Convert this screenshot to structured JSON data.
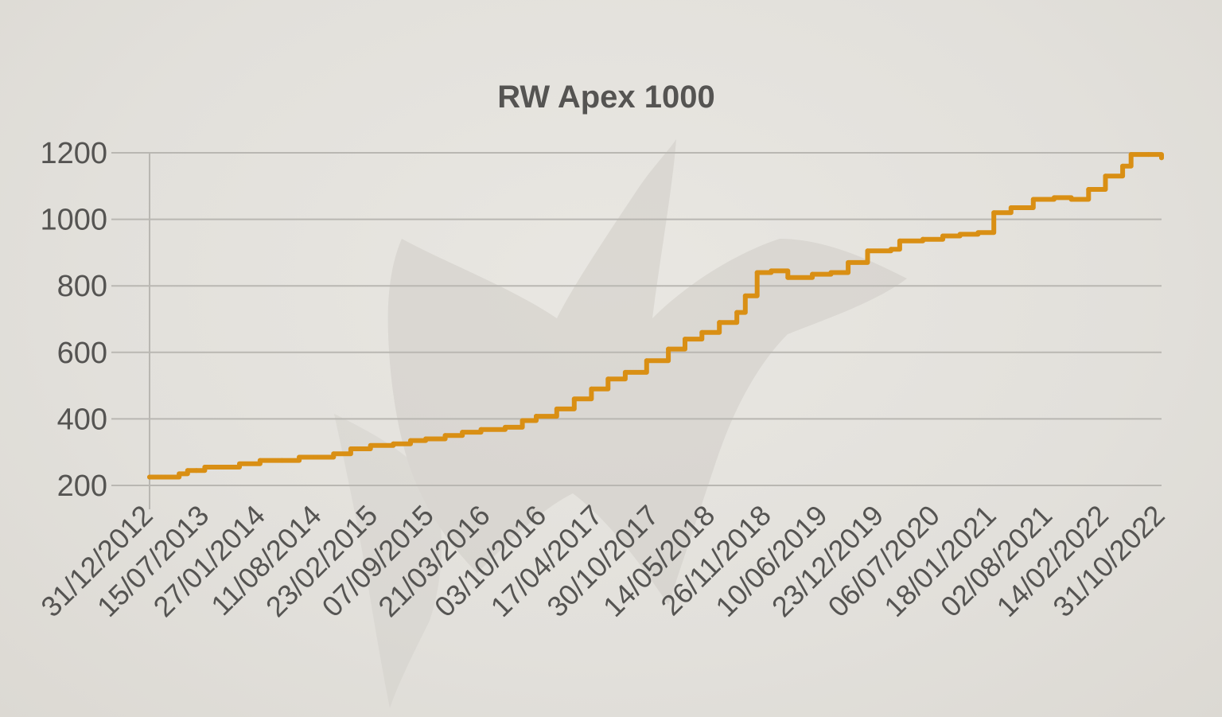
{
  "chart_data": {
    "type": "line",
    "title": "RW Apex 1000",
    "xlabel": "",
    "ylabel": "",
    "ylim": [
      200,
      1200
    ],
    "yticks": [
      200,
      400,
      600,
      800,
      1000,
      1200
    ],
    "grid": true,
    "legend": "none",
    "colors": {
      "line": "#d98f14",
      "text": "#555452",
      "grid": "#b9b7b2"
    },
    "x_tick_labels": [
      "31/12/2012",
      "15/07/2013",
      "27/01/2014",
      "11/08/2014",
      "23/02/2015",
      "07/09/2015",
      "21/03/2016",
      "03/10/2016",
      "17/04/2017",
      "30/10/2017",
      "14/05/2018",
      "26/11/2018",
      "10/06/2019",
      "23/12/2019",
      "06/07/2020",
      "18/01/2021",
      "02/08/2021",
      "14/02/2022",
      "31/10/2022"
    ],
    "series": [
      {
        "points": [
          [
            "31/12/2012",
            225
          ],
          [
            "15/02/2013",
            225
          ],
          [
            "15/04/2013",
            235
          ],
          [
            "15/05/2013",
            245
          ],
          [
            "15/06/2013",
            245
          ],
          [
            "15/07/2013",
            255
          ],
          [
            "15/09/2013",
            255
          ],
          [
            "15/11/2013",
            265
          ],
          [
            "27/01/2014",
            275
          ],
          [
            "15/04/2014",
            275
          ],
          [
            "15/06/2014",
            285
          ],
          [
            "11/08/2014",
            285
          ],
          [
            "15/10/2014",
            295
          ],
          [
            "15/12/2014",
            310
          ],
          [
            "23/02/2015",
            320
          ],
          [
            "15/05/2015",
            325
          ],
          [
            "15/07/2015",
            335
          ],
          [
            "07/09/2015",
            340
          ],
          [
            "15/11/2015",
            350
          ],
          [
            "15/01/2016",
            360
          ],
          [
            "21/03/2016",
            368
          ],
          [
            "15/06/2016",
            375
          ],
          [
            "15/08/2016",
            395
          ],
          [
            "03/10/2016",
            408
          ],
          [
            "15/12/2016",
            430
          ],
          [
            "15/02/2017",
            460
          ],
          [
            "17/04/2017",
            490
          ],
          [
            "15/06/2017",
            520
          ],
          [
            "15/08/2017",
            540
          ],
          [
            "30/10/2017",
            575
          ],
          [
            "15/01/2018",
            610
          ],
          [
            "15/03/2018",
            640
          ],
          [
            "14/05/2018",
            660
          ],
          [
            "15/07/2018",
            690
          ],
          [
            "15/09/2018",
            720
          ],
          [
            "15/10/2018",
            770
          ],
          [
            "26/11/2018",
            840
          ],
          [
            "15/01/2019",
            845
          ],
          [
            "15/03/2019",
            825
          ],
          [
            "10/06/2019",
            835
          ],
          [
            "15/08/2019",
            840
          ],
          [
            "15/10/2019",
            870
          ],
          [
            "23/12/2019",
            905
          ],
          [
            "15/03/2020",
            910
          ],
          [
            "15/04/2020",
            935
          ],
          [
            "06/07/2020",
            940
          ],
          [
            "15/09/2020",
            950
          ],
          [
            "15/11/2020",
            955
          ],
          [
            "18/01/2021",
            960
          ],
          [
            "15/03/2021",
            1020
          ],
          [
            "15/05/2021",
            1035
          ],
          [
            "02/08/2021",
            1060
          ],
          [
            "15/10/2021",
            1065
          ],
          [
            "15/12/2021",
            1060
          ],
          [
            "14/02/2022",
            1090
          ],
          [
            "15/04/2022",
            1130
          ],
          [
            "15/06/2022",
            1160
          ],
          [
            "15/07/2022",
            1195
          ],
          [
            "15/09/2022",
            1195
          ],
          [
            "31/10/2022",
            1185
          ]
        ]
      }
    ]
  }
}
